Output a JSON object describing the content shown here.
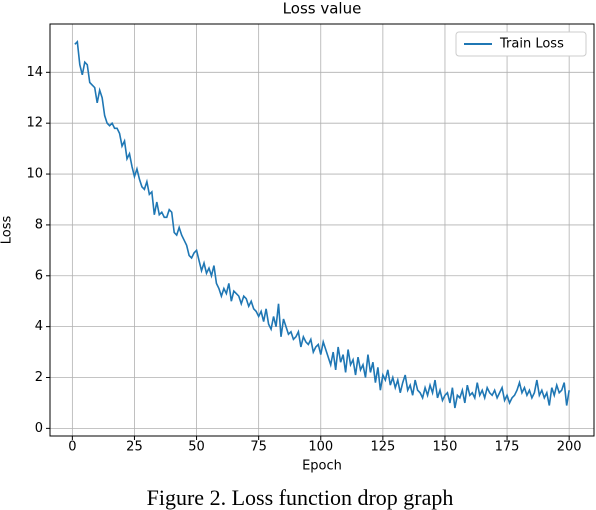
{
  "chart_data": {
    "type": "line",
    "title": "Loss value",
    "x_label": "Epoch",
    "y_label": "Loss",
    "caption": "Figure 2. Loss function drop graph",
    "x": [
      1,
      2,
      3,
      4,
      5,
      6,
      7,
      8,
      9,
      10,
      11,
      12,
      13,
      14,
      15,
      16,
      17,
      18,
      19,
      20,
      21,
      22,
      23,
      24,
      25,
      26,
      27,
      28,
      29,
      30,
      31,
      32,
      33,
      34,
      35,
      36,
      37,
      38,
      39,
      40,
      41,
      42,
      43,
      44,
      45,
      46,
      47,
      48,
      49,
      50,
      51,
      52,
      53,
      54,
      55,
      56,
      57,
      58,
      59,
      60,
      61,
      62,
      63,
      64,
      65,
      66,
      67,
      68,
      69,
      70,
      71,
      72,
      73,
      74,
      75,
      76,
      77,
      78,
      79,
      80,
      81,
      82,
      83,
      84,
      85,
      86,
      87,
      88,
      89,
      90,
      91,
      92,
      93,
      94,
      95,
      96,
      97,
      98,
      99,
      100,
      101,
      102,
      103,
      104,
      105,
      106,
      107,
      108,
      109,
      110,
      111,
      112,
      113,
      114,
      115,
      116,
      117,
      118,
      119,
      120,
      121,
      122,
      123,
      124,
      125,
      126,
      127,
      128,
      129,
      130,
      131,
      132,
      133,
      134,
      135,
      136,
      137,
      138,
      139,
      140,
      141,
      142,
      143,
      144,
      145,
      146,
      147,
      148,
      149,
      150,
      151,
      152,
      153,
      154,
      155,
      156,
      157,
      158,
      159,
      160,
      161,
      162,
      163,
      164,
      165,
      166,
      167,
      168,
      169,
      170,
      171,
      172,
      173,
      174,
      175,
      176,
      177,
      178,
      179,
      180,
      181,
      182,
      183,
      184,
      185,
      186,
      187,
      188,
      189,
      190,
      191,
      192,
      193,
      194,
      195,
      196,
      197,
      198,
      199,
      200
    ],
    "series": [
      {
        "name": "Train Loss",
        "color": "#1f77b4",
        "values": [
          15.1,
          15.2,
          14.3,
          13.9,
          14.4,
          14.3,
          13.6,
          13.5,
          13.4,
          12.8,
          13.3,
          13.0,
          12.3,
          12.0,
          11.9,
          12.0,
          11.8,
          11.8,
          11.6,
          11.1,
          11.3,
          10.6,
          10.8,
          10.3,
          9.9,
          10.2,
          9.8,
          9.5,
          9.4,
          9.7,
          9.2,
          9.3,
          8.4,
          8.9,
          8.4,
          8.5,
          8.3,
          8.3,
          8.6,
          8.5,
          7.7,
          7.6,
          7.9,
          7.6,
          7.4,
          7.2,
          6.8,
          6.7,
          6.9,
          7.0,
          6.6,
          6.2,
          6.5,
          6.1,
          6.3,
          6.0,
          6.4,
          5.7,
          5.5,
          5.2,
          5.5,
          5.3,
          5.7,
          5.0,
          5.4,
          5.3,
          5.2,
          4.9,
          5.2,
          5.1,
          4.8,
          5.0,
          4.7,
          4.6,
          4.4,
          4.6,
          4.2,
          4.7,
          4.1,
          3.9,
          4.4,
          4.0,
          4.9,
          3.6,
          4.3,
          4.0,
          3.7,
          3.8,
          3.5,
          3.6,
          3.8,
          3.2,
          3.6,
          3.4,
          3.3,
          3.5,
          3.0,
          3.2,
          3.3,
          2.9,
          3.4,
          3.1,
          2.8,
          2.5,
          3.0,
          2.3,
          3.2,
          2.6,
          2.9,
          2.2,
          3.1,
          2.5,
          2.7,
          2.1,
          2.8,
          2.3,
          2.5,
          2.0,
          2.9,
          2.2,
          2.6,
          1.8,
          2.4,
          1.5,
          2.1,
          1.9,
          2.3,
          1.7,
          2.0,
          1.6,
          1.9,
          1.4,
          1.8,
          2.1,
          1.5,
          1.7,
          1.3,
          1.9,
          1.5,
          1.4,
          1.2,
          1.6,
          1.3,
          1.7,
          1.4,
          1.9,
          1.2,
          1.5,
          1.1,
          1.3,
          1.4,
          1.0,
          1.6,
          0.8,
          1.3,
          1.2,
          1.5,
          1.0,
          1.7,
          1.3,
          1.4,
          1.2,
          1.8,
          1.3,
          1.5,
          1.2,
          1.6,
          1.4,
          1.3,
          1.5,
          1.2,
          1.4,
          1.6,
          1.1,
          1.3,
          1.0,
          1.2,
          1.3,
          1.5,
          1.8,
          1.4,
          1.6,
          1.3,
          1.5,
          1.2,
          1.4,
          1.9,
          1.3,
          1.5,
          1.2,
          1.4,
          0.9,
          1.6,
          1.3,
          1.7,
          1.4,
          1.5,
          1.8,
          0.9,
          1.5
        ]
      }
    ],
    "xlim": [
      -9,
      210
    ],
    "ylim": [
      -0.3,
      15.9
    ],
    "xticks": [
      0,
      25,
      50,
      75,
      100,
      125,
      150,
      175,
      200
    ],
    "yticks": [
      0,
      2,
      4,
      6,
      8,
      10,
      12,
      14
    ],
    "grid": true,
    "legend": "upper right"
  }
}
